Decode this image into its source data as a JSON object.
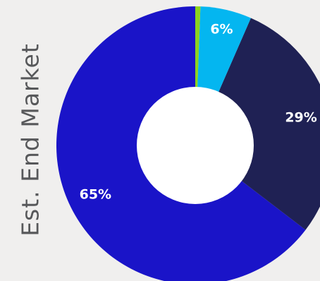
{
  "chart_data": {
    "type": "pie",
    "title": "Est. End Market",
    "donut": true,
    "slices": [
      {
        "label": "65%",
        "value": 65,
        "color": "#1a14c8"
      },
      {
        "label": "29%",
        "value": 29,
        "color": "#1f2154"
      },
      {
        "label": "6%",
        "value": 6,
        "color": "#04b6f0"
      },
      {
        "label": "",
        "value": 0.6,
        "color": "#8dd21e"
      }
    ]
  }
}
